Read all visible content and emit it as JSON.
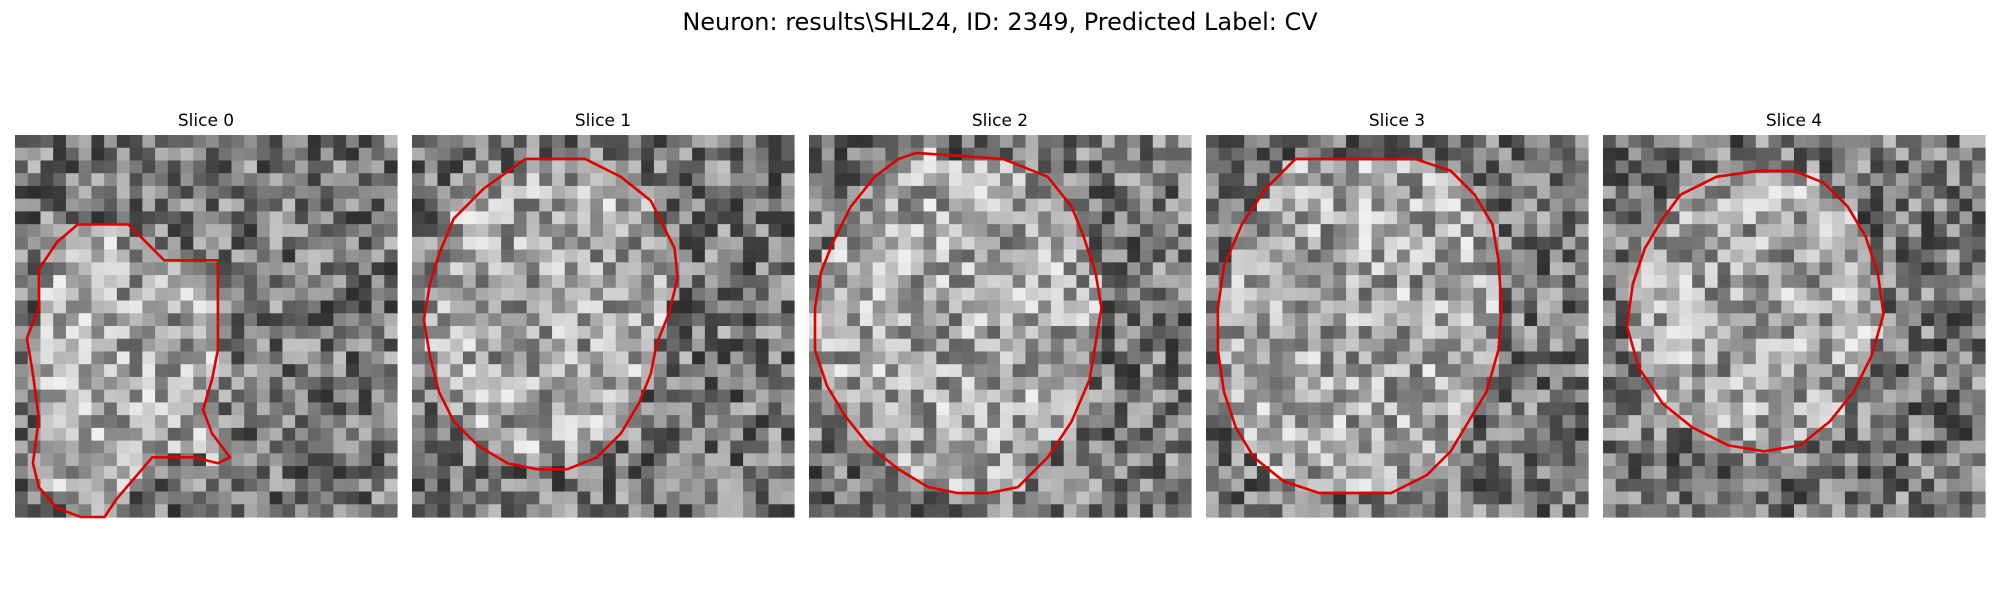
{
  "figure": {
    "title": "Neuron: results\\SHL24, ID: 2349, Predicted Label: CV",
    "contour_color": "#e00000",
    "grid_size": 30
  },
  "panels": [
    {
      "title": "Slice 0",
      "seed": 11,
      "contour": [
        [
          21,
          30
        ],
        [
          38,
          30
        ],
        [
          50,
          42
        ],
        [
          68,
          42
        ],
        [
          68,
          72
        ],
        [
          66,
          82
        ],
        [
          63,
          92
        ],
        [
          66,
          100
        ],
        [
          72,
          108
        ],
        [
          68,
          110
        ],
        [
          60,
          108
        ],
        [
          46,
          108
        ],
        [
          40,
          115
        ],
        [
          34,
          122
        ],
        [
          30,
          128
        ],
        [
          22,
          128
        ],
        [
          14,
          125
        ],
        [
          8,
          118
        ],
        [
          6,
          110
        ],
        [
          8,
          95
        ],
        [
          6,
          80
        ],
        [
          4,
          68
        ],
        [
          8,
          58
        ],
        [
          8,
          45
        ],
        [
          14,
          36
        ],
        [
          21,
          30
        ]
      ]
    },
    {
      "title": "Slice 1",
      "seed": 23,
      "contour": [
        [
          38,
          8
        ],
        [
          58,
          8
        ],
        [
          70,
          14
        ],
        [
          80,
          22
        ],
        [
          84,
          30
        ],
        [
          88,
          38
        ],
        [
          89,
          48
        ],
        [
          86,
          60
        ],
        [
          82,
          70
        ],
        [
          80,
          80
        ],
        [
          76,
          90
        ],
        [
          70,
          100
        ],
        [
          62,
          108
        ],
        [
          52,
          112
        ],
        [
          42,
          112
        ],
        [
          32,
          110
        ],
        [
          22,
          104
        ],
        [
          14,
          96
        ],
        [
          9,
          86
        ],
        [
          6,
          74
        ],
        [
          4,
          62
        ],
        [
          6,
          50
        ],
        [
          9,
          40
        ],
        [
          14,
          28
        ],
        [
          24,
          18
        ],
        [
          38,
          8
        ]
      ]
    },
    {
      "title": "Slice 2",
      "seed": 37,
      "contour": [
        [
          8,
          36
        ],
        [
          14,
          24
        ],
        [
          22,
          14
        ],
        [
          30,
          8
        ],
        [
          36,
          6
        ],
        [
          65,
          8
        ],
        [
          80,
          14
        ],
        [
          88,
          24
        ],
        [
          92,
          34
        ],
        [
          96,
          46
        ],
        [
          98,
          58
        ],
        [
          96,
          70
        ],
        [
          94,
          82
        ],
        [
          88,
          96
        ],
        [
          80,
          108
        ],
        [
          70,
          118
        ],
        [
          60,
          120
        ],
        [
          50,
          120
        ],
        [
          40,
          118
        ],
        [
          30,
          112
        ],
        [
          20,
          104
        ],
        [
          12,
          94
        ],
        [
          6,
          84
        ],
        [
          2,
          72
        ],
        [
          2,
          58
        ],
        [
          4,
          46
        ],
        [
          8,
          36
        ]
      ]
    },
    {
      "title": "Slice 3",
      "seed": 53,
      "contour": [
        [
          30,
          8
        ],
        [
          70,
          8
        ],
        [
          82,
          12
        ],
        [
          90,
          20
        ],
        [
          96,
          30
        ],
        [
          98,
          42
        ],
        [
          99,
          58
        ],
        [
          98,
          72
        ],
        [
          94,
          86
        ],
        [
          88,
          96
        ],
        [
          82,
          106
        ],
        [
          74,
          114
        ],
        [
          62,
          120
        ],
        [
          50,
          120
        ],
        [
          38,
          120
        ],
        [
          26,
          116
        ],
        [
          16,
          108
        ],
        [
          10,
          98
        ],
        [
          6,
          86
        ],
        [
          4,
          72
        ],
        [
          4,
          58
        ],
        [
          6,
          44
        ],
        [
          12,
          30
        ],
        [
          20,
          18
        ],
        [
          30,
          8
        ]
      ]
    },
    {
      "title": "Slice 4",
      "seed": 71,
      "contour": [
        [
          26,
          20
        ],
        [
          38,
          14
        ],
        [
          52,
          12
        ],
        [
          64,
          12
        ],
        [
          74,
          16
        ],
        [
          82,
          24
        ],
        [
          88,
          34
        ],
        [
          92,
          46
        ],
        [
          94,
          60
        ],
        [
          90,
          74
        ],
        [
          84,
          86
        ],
        [
          76,
          96
        ],
        [
          66,
          104
        ],
        [
          54,
          106
        ],
        [
          42,
          104
        ],
        [
          30,
          98
        ],
        [
          20,
          90
        ],
        [
          12,
          78
        ],
        [
          8,
          64
        ],
        [
          10,
          50
        ],
        [
          14,
          38
        ],
        [
          20,
          28
        ],
        [
          26,
          20
        ]
      ]
    }
  ]
}
